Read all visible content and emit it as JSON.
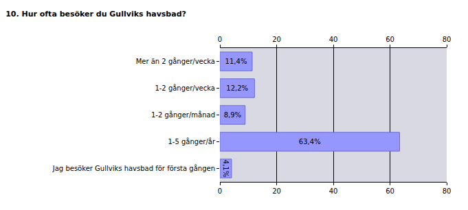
{
  "chart_data": {
    "type": "bar",
    "orientation": "horizontal",
    "title": "10. Hur ofta besöker du Gullviks havsbad?",
    "categories": [
      "Mer än 2 gånger/vecka",
      "1-2 gånger/vecka",
      "1-2 gånger/månad",
      "1-5 gånger/år",
      "Jag besöker Gullviks havsbad för första gången"
    ],
    "values": [
      11.4,
      12.2,
      8.9,
      63.4,
      4.1
    ],
    "value_labels": [
      "11,4%",
      "12,2%",
      "8,9%",
      "63,4%",
      "4,1%"
    ],
    "data_labels": true,
    "color": "#9696ff",
    "xlim": [
      0,
      80
    ],
    "xticks": [
      0,
      20,
      40,
      60,
      80
    ],
    "grid": true
  }
}
